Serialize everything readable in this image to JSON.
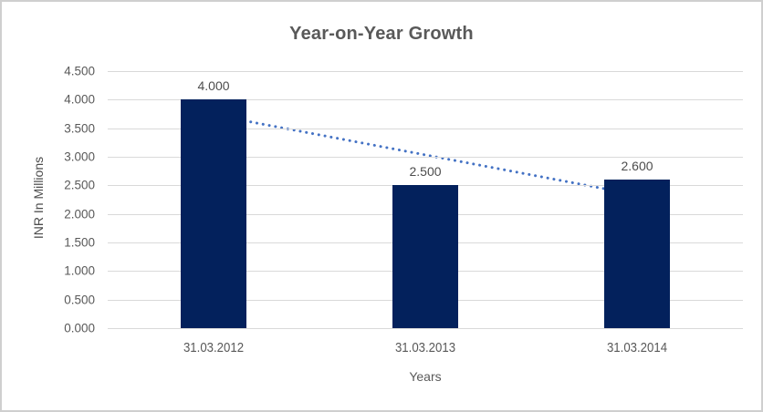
{
  "chart_data": {
    "type": "bar",
    "title": "Year-on-Year Growth",
    "xlabel": "Years",
    "ylabel": "INR In Millions",
    "categories": [
      "31.03.2012",
      "31.03.2013",
      "31.03.2014"
    ],
    "values": [
      4.0,
      2.5,
      2.6
    ],
    "bar_labels": [
      "4.000",
      "2.500",
      "2.600"
    ],
    "ylim": [
      0,
      4.5
    ],
    "ytick_step": 0.5,
    "ytick_labels": [
      "0.000",
      "0.500",
      "1.000",
      "1.500",
      "2.000",
      "2.500",
      "3.000",
      "3.500",
      "4.000",
      "4.500"
    ],
    "grid": "horizontal",
    "legend": "none",
    "bar_color": "#03215c",
    "trendline": {
      "type": "linear",
      "style": "dotted",
      "color": "#4472c4",
      "start_value": 3.733,
      "end_value": 2.333
    },
    "colors": {
      "grid": "#d9d9d9",
      "axis_text": "#595959",
      "title_text": "#595959",
      "frame_border": "#cfcfcf",
      "background": "#ffffff"
    }
  }
}
